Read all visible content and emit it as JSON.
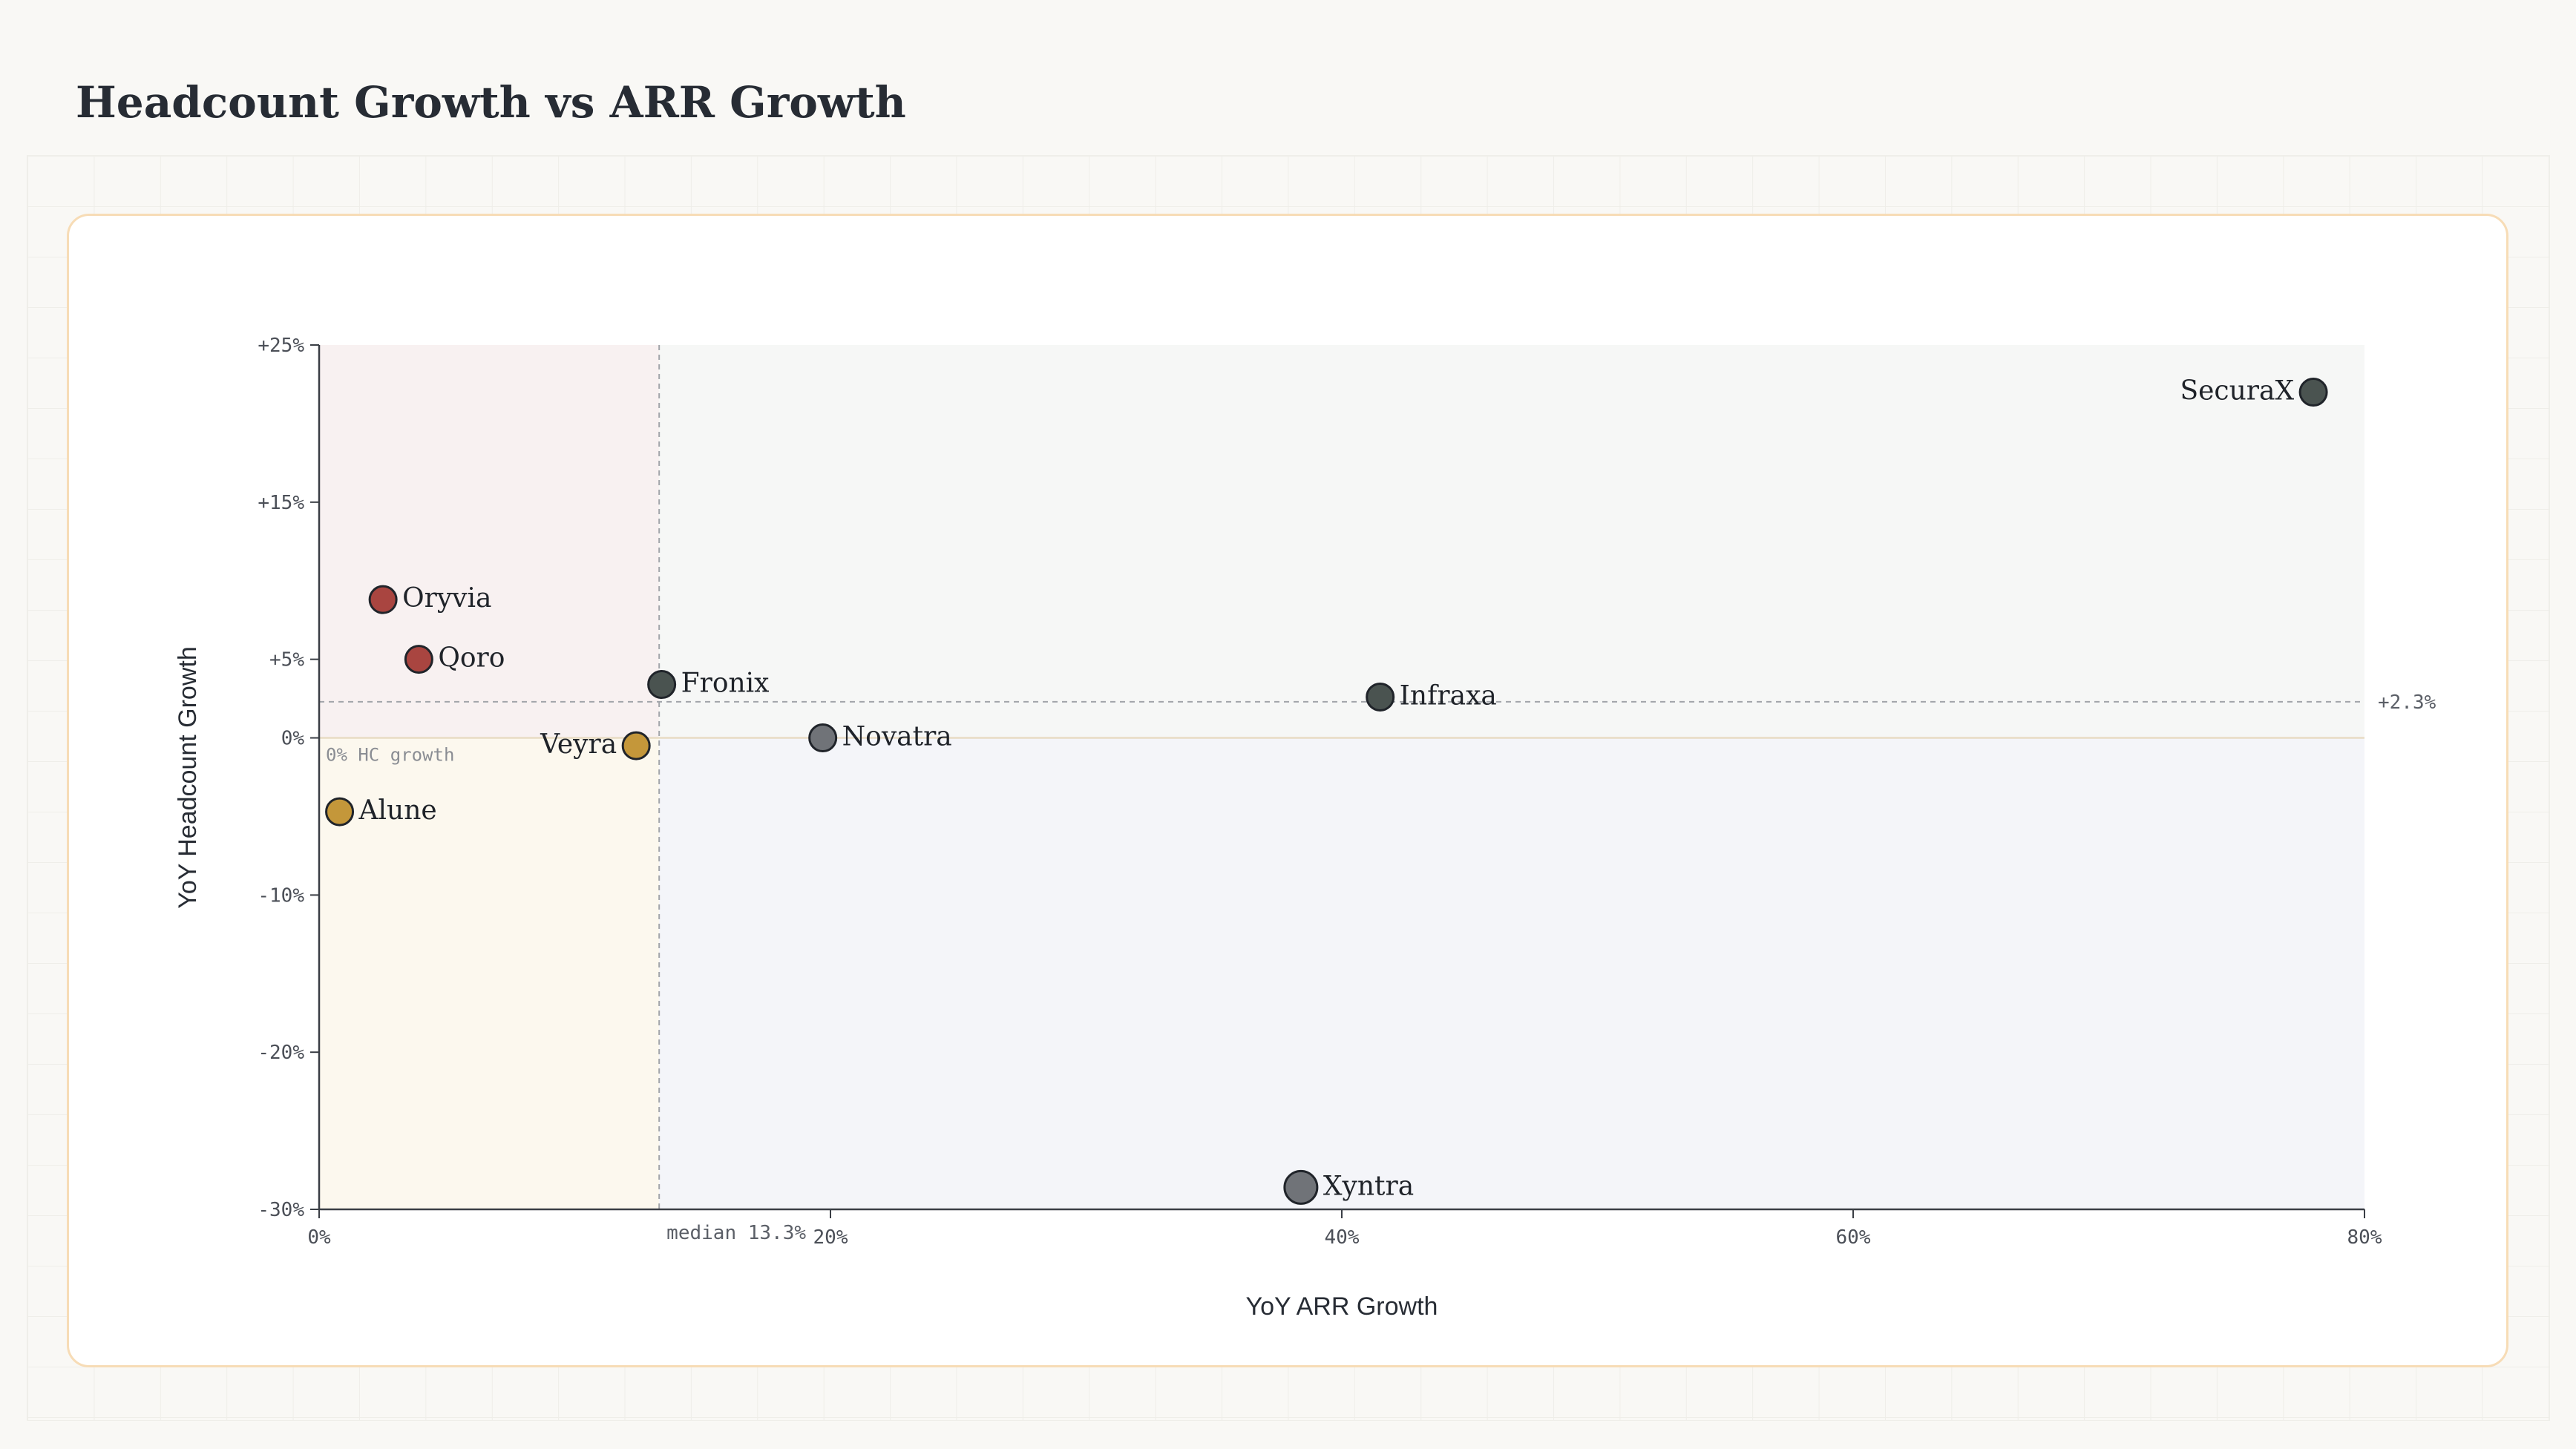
{
  "title": "Headcount Growth vs ARR Growth",
  "chart_data": {
    "type": "scatter",
    "title": "Headcount Growth vs ARR Growth",
    "xlabel": "YoY ARR Growth",
    "ylabel": "YoY Headcount Growth",
    "xlim": [
      0,
      80
    ],
    "ylim": [
      -30,
      25
    ],
    "xticks": [
      {
        "value": 0,
        "label": "0%"
      },
      {
        "value": 20,
        "label": "20%"
      },
      {
        "value": 40,
        "label": "40%"
      },
      {
        "value": 60,
        "label": "60%"
      },
      {
        "value": 80,
        "label": "80%"
      }
    ],
    "yticks": [
      {
        "value": 25,
        "label": "+25%"
      },
      {
        "value": 15,
        "label": "+15%"
      },
      {
        "value": 5,
        "label": "+5%"
      },
      {
        "value": 0,
        "label": "0%"
      },
      {
        "value": -10,
        "label": "-10%"
      },
      {
        "value": -20,
        "label": "-20%"
      },
      {
        "value": -30,
        "label": "-30%"
      }
    ],
    "reference_lines": {
      "x_median": {
        "value": 13.3,
        "label": "median 13.3%"
      },
      "y_median": {
        "value": 2.3,
        "label": "+2.3%"
      },
      "y_zero": {
        "value": 0,
        "label": "0% HC growth"
      }
    },
    "quadrant_colors": {
      "low_arr_high_hc": "#f8f1f1",
      "low_arr_low_hc": "#fcf8ee",
      "high_arr_high_hc": "#f6f7f6",
      "high_arr_low_hc": "#f4f5f9"
    },
    "points": [
      {
        "name": "SecuraX",
        "x": 78.0,
        "y": 22.0,
        "color": "#4a5350",
        "label_side": "left",
        "size": "normal"
      },
      {
        "name": "Oryvia",
        "x": 2.5,
        "y": 8.8,
        "color": "#a94540",
        "label_side": "right",
        "size": "normal"
      },
      {
        "name": "Qoro",
        "x": 3.9,
        "y": 5.0,
        "color": "#a94540",
        "label_side": "right",
        "size": "normal"
      },
      {
        "name": "Fronix",
        "x": 13.4,
        "y": 3.4,
        "color": "#4a5350",
        "label_side": "right",
        "size": "normal"
      },
      {
        "name": "Infraxa",
        "x": 41.5,
        "y": 2.6,
        "color": "#4a5350",
        "label_side": "right",
        "size": "normal"
      },
      {
        "name": "Novatra",
        "x": 19.7,
        "y": 0.0,
        "color": "#707378",
        "label_side": "right",
        "size": "normal"
      },
      {
        "name": "Veyra",
        "x": 12.4,
        "y": -0.5,
        "color": "#c4973a",
        "label_side": "left",
        "size": "normal"
      },
      {
        "name": "Alune",
        "x": 0.8,
        "y": -4.7,
        "color": "#c4973a",
        "label_side": "right",
        "size": "normal"
      },
      {
        "name": "Xyntra",
        "x": 38.4,
        "y": -28.6,
        "color": "#707378",
        "label_side": "right",
        "size": "large"
      }
    ]
  }
}
